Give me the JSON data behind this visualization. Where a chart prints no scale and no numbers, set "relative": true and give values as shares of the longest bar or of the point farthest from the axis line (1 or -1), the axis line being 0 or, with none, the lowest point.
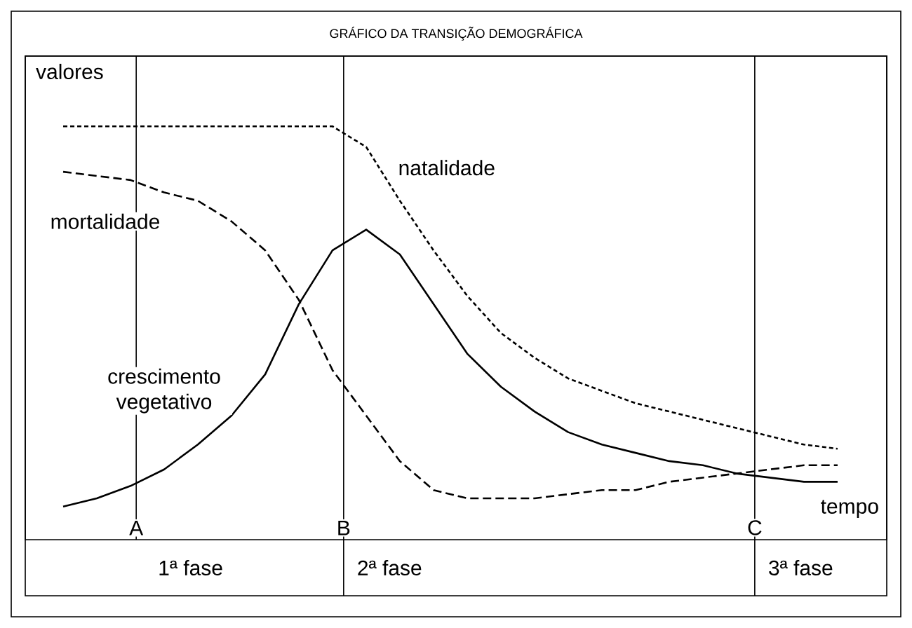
{
  "chart_data": {
    "type": "line",
    "title": "GRÁFICO DA TRANSIÇÃO DEMOGRÁFICA",
    "ylabel": "valores",
    "xlabel": "tempo",
    "relative": true,
    "categories": [
      null,
      null,
      null,
      null,
      null,
      null,
      null,
      null,
      null,
      null,
      null,
      null,
      null,
      null,
      null,
      null,
      null,
      null,
      null,
      null,
      null,
      null,
      null,
      null
    ],
    "series": [
      {
        "name": "natalidade",
        "color": "#000000",
        "line_style": "dotted",
        "values": [
          1.0,
          1.0,
          1.0,
          1.0,
          1.0,
          1.0,
          1.0,
          1.0,
          1.0,
          0.95,
          0.82,
          0.7,
          0.59,
          0.5,
          0.44,
          0.39,
          0.36,
          0.33,
          0.31,
          0.29,
          0.27,
          0.25,
          0.23,
          0.22
        ]
      },
      {
        "name": "mortalidade",
        "color": "#000000",
        "line_style": "dashed",
        "values": [
          0.89,
          0.88,
          0.87,
          0.84,
          0.82,
          0.77,
          0.7,
          0.58,
          0.41,
          0.3,
          0.19,
          0.12,
          0.1,
          0.1,
          0.1,
          0.11,
          0.12,
          0.12,
          0.14,
          0.15,
          0.16,
          0.17,
          0.18,
          0.18
        ]
      },
      {
        "name": "crescimento vegetativo",
        "color": "#000000",
        "line_style": "solid",
        "values": [
          0.08,
          0.1,
          0.13,
          0.17,
          0.23,
          0.3,
          0.4,
          0.57,
          0.7,
          0.75,
          0.69,
          0.57,
          0.45,
          0.37,
          0.31,
          0.26,
          0.23,
          0.21,
          0.19,
          0.18,
          0.16,
          0.15,
          0.14,
          0.14
        ]
      }
    ],
    "annotations": [
      "A",
      "B",
      "C",
      "1ª fase",
      "2ª fase",
      "3ª fase"
    ]
  }
}
